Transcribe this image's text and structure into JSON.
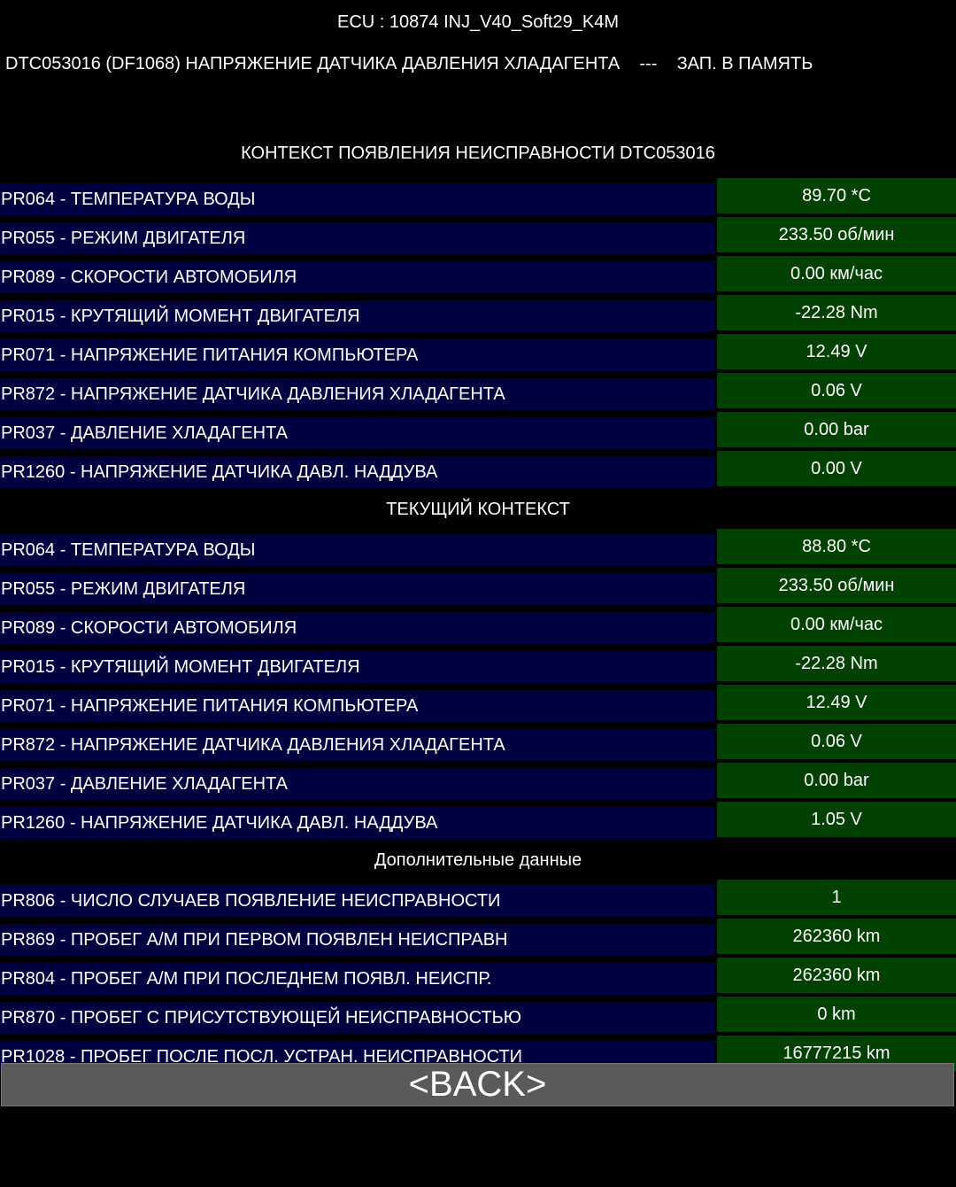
{
  "header": {
    "ecu": "ECU : 10874  INJ_V40_Soft29_K4M",
    "dtc": "DTC053016 (DF1068) НАПРЯЖЕНИЕ ДАТЧИКА ДАВЛЕНИЯ ХЛАДАГЕНТА    ---    ЗАП. В ПАМЯТЬ"
  },
  "sections": [
    {
      "title": "КОНТЕКСТ ПОЯВЛЕНИЯ НЕИСПРАВНОСТИ DTC053016",
      "rows": [
        {
          "label": "PR064 - ТЕМПЕРАТУРА ВОДЫ",
          "value": "89.70 *C"
        },
        {
          "label": "PR055 - РЕЖИМ ДВИГАТЕЛЯ",
          "value": "233.50 об/мин"
        },
        {
          "label": "PR089 - СКОРОСТИ АВТОМОБИЛЯ",
          "value": "0.00 км/час"
        },
        {
          "label": "PR015 - КРУТЯЩИЙ МОМЕНТ ДВИГАТЕЛЯ",
          "value": "-22.28 Nm"
        },
        {
          "label": "PR071 - НАПРЯЖЕНИЕ ПИТАНИЯ КОМПЬЮТЕРА",
          "value": "12.49 V"
        },
        {
          "label": "PR872 - НАПРЯЖЕНИЕ ДАТЧИКА ДАВЛЕНИЯ ХЛАДАГЕНТА",
          "value": "0.06 V"
        },
        {
          "label": "PR037 - ДАВЛЕНИЕ ХЛАДАГЕНТА",
          "value": "0.00 bar"
        },
        {
          "label": "PR1260 - НАПРЯЖЕНИЕ ДАТЧИКА ДАВЛ. НАДДУВА",
          "value": "0.00 V"
        }
      ]
    },
    {
      "title": "ТЕКУЩИЙ КОНТЕКСТ",
      "rows": [
        {
          "label": "PR064 - ТЕМПЕРАТУРА ВОДЫ",
          "value": "88.80 *C"
        },
        {
          "label": "PR055 - РЕЖИМ ДВИГАТЕЛЯ",
          "value": "233.50 об/мин"
        },
        {
          "label": "PR089 - СКОРОСТИ АВТОМОБИЛЯ",
          "value": "0.00 км/час"
        },
        {
          "label": "PR015 - КРУТЯЩИЙ МОМЕНТ ДВИГАТЕЛЯ",
          "value": "-22.28 Nm"
        },
        {
          "label": "PR071 - НАПРЯЖЕНИЕ ПИТАНИЯ КОМПЬЮТЕРА",
          "value": "12.49 V"
        },
        {
          "label": "PR872 - НАПРЯЖЕНИЕ ДАТЧИКА ДАВЛЕНИЯ ХЛАДАГЕНТА",
          "value": "0.06 V"
        },
        {
          "label": "PR037 - ДАВЛЕНИЕ ХЛАДАГЕНТА",
          "value": "0.00 bar"
        },
        {
          "label": "PR1260 - НАПРЯЖЕНИЕ ДАТЧИКА ДАВЛ. НАДДУВА",
          "value": "1.05 V"
        }
      ]
    },
    {
      "title": "Дополнительные данные",
      "rows": [
        {
          "label": "PR806 - ЧИСЛО СЛУЧАЕВ ПОЯВЛЕНИЕ НЕИСПРАВНОСТИ",
          "value": "1"
        },
        {
          "label": "PR869 - ПРОБЕГ А/М ПРИ ПЕРВОМ ПОЯВЛЕН НЕИСПРАВН",
          "value": "262360 km"
        },
        {
          "label": "PR804 - ПРОБЕГ А/М ПРИ ПОСЛЕДНЕМ ПОЯВЛ. НЕИСПР.",
          "value": "262360 km"
        },
        {
          "label": "PR870 - ПРОБЕГ С ПРИСУТСТВУЮЩЕЙ НЕИСПРАВНОСТЬЮ",
          "value": "0 km"
        },
        {
          "label": "PR1028 - ПРОБЕГ ПОСЛЕ ПОСЛ. УСТРАН. НЕИСПРАВНОСТИ",
          "value": "16777215 km"
        }
      ]
    }
  ],
  "back_label": "<BACK>",
  "colors": {
    "label_bg": "#000040",
    "value_bg": "#004000",
    "button_bg": "#5a5a5a"
  }
}
